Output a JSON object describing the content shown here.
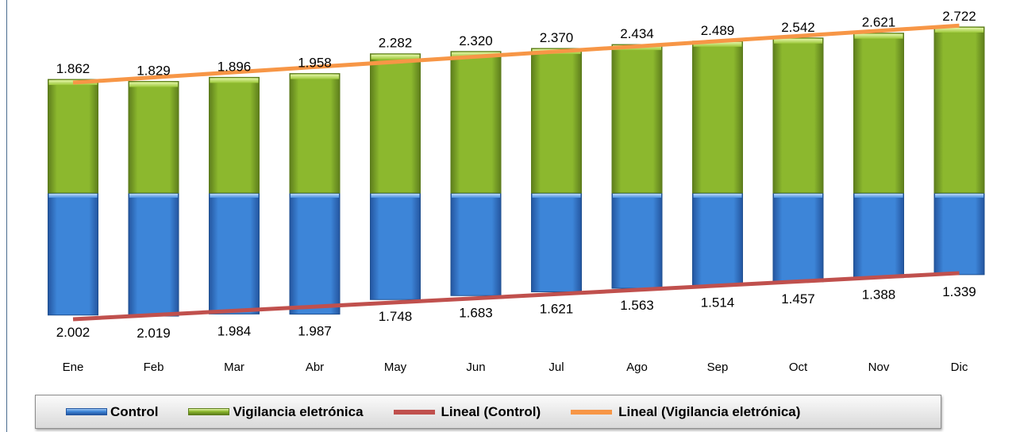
{
  "chart_data": {
    "type": "bar",
    "stacked": true,
    "categories": [
      "Ene",
      "Feb",
      "Mar",
      "Abr",
      "May",
      "Jun",
      "Jul",
      "Ago",
      "Sep",
      "Oct",
      "Nov",
      "Dic"
    ],
    "series": [
      {
        "name": "Control",
        "values": [
          2002,
          2019,
          1984,
          1987,
          1748,
          1683,
          1621,
          1563,
          1514,
          1457,
          1388,
          1339
        ],
        "labels": [
          "2.002",
          "2.019",
          "1.984",
          "1.987",
          "1.748",
          "1.683",
          "1.621",
          "1.563",
          "1.514",
          "1.457",
          "1.388",
          "1.339"
        ],
        "color": "#3d85d8"
      },
      {
        "name": "Vigilancia eletrónica",
        "values": [
          1862,
          1829,
          1896,
          1958,
          2282,
          2320,
          2370,
          2434,
          2489,
          2542,
          2621,
          2722
        ],
        "labels": [
          "1.862",
          "1.829",
          "1.896",
          "1.958",
          "2.282",
          "2.320",
          "2.370",
          "2.434",
          "2.489",
          "2.542",
          "2.621",
          "2.722"
        ],
        "color": "#8cb82e"
      }
    ],
    "trendlines": [
      {
        "name": "Lineal (Control)",
        "series": "Control",
        "color": "#c0504d"
      },
      {
        "name": "Lineal (Vigilancia eletrónica)",
        "series": "Vigilancia eletrónica",
        "color": "#f79646"
      }
    ],
    "legend_position": "bottom",
    "grid": false
  }
}
